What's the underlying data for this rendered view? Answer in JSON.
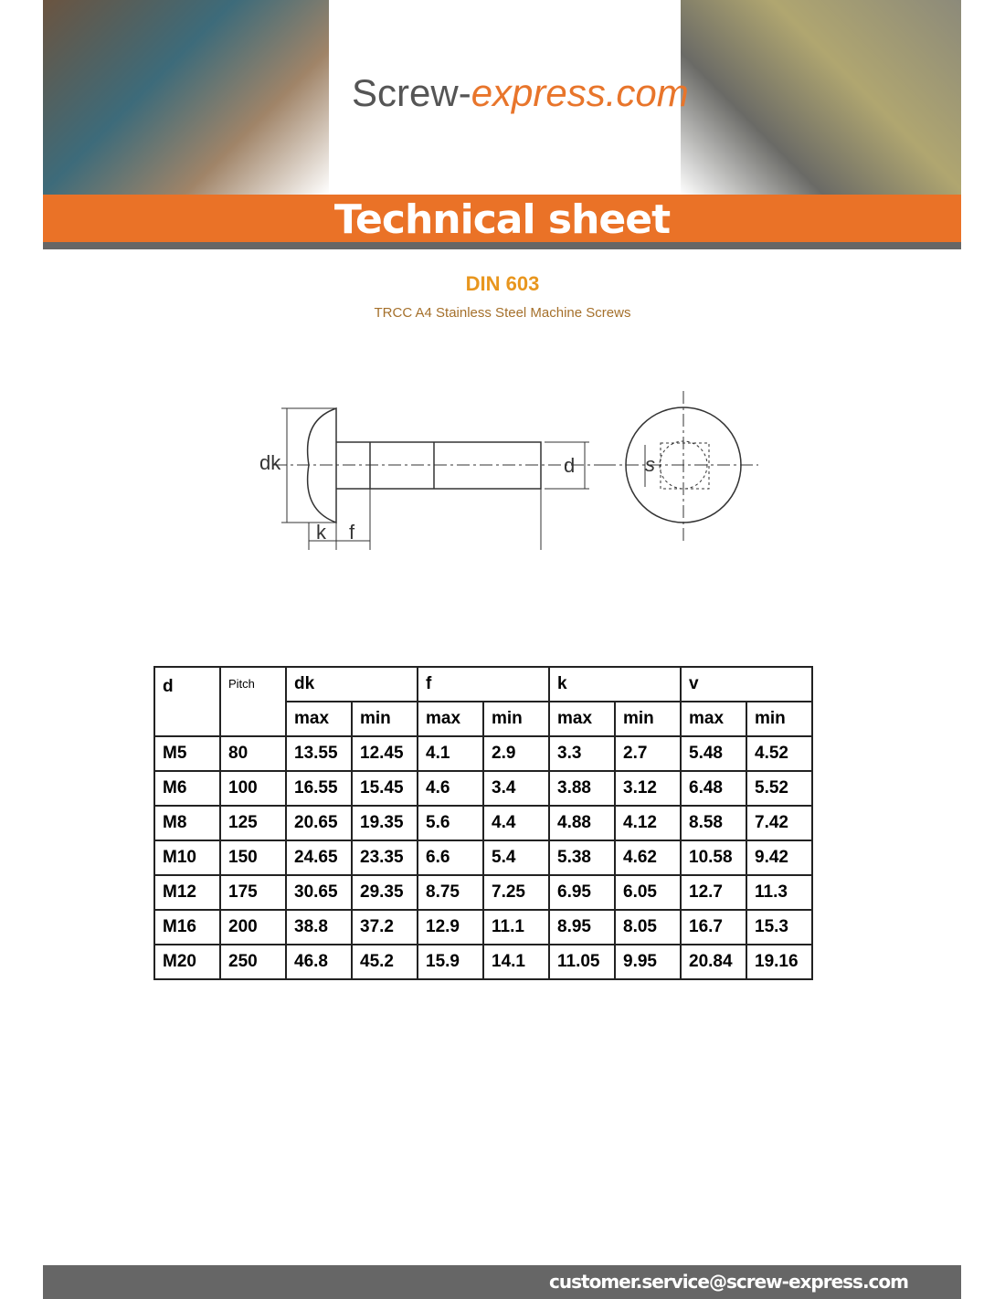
{
  "header": {
    "logo": [
      "Screw-",
      "express.com"
    ],
    "banner": "Technical sheet"
  },
  "title": "DIN 603",
  "subtitle": "TRCC A4 Stainless Steel Machine Screws",
  "diagram": {
    "labels": [
      "dk",
      "k",
      "f",
      "d",
      "s"
    ]
  },
  "table": {
    "header_top": [
      "d",
      "Pitch",
      "dk",
      "f",
      "k",
      "v"
    ],
    "header_sub": [
      "max",
      "min",
      "max",
      "min",
      "max",
      "min",
      "max",
      "min"
    ],
    "rows": [
      [
        "M5",
        "80",
        "13.55",
        "12.45",
        "4.1",
        "2.9",
        "3.3",
        "2.7",
        "5.48",
        "4.52"
      ],
      [
        "M6",
        "100",
        "16.55",
        "15.45",
        "4.6",
        "3.4",
        "3.88",
        "3.12",
        "6.48",
        "5.52"
      ],
      [
        "M8",
        "125",
        "20.65",
        "19.35",
        "5.6",
        "4.4",
        "4.88",
        "4.12",
        "8.58",
        "7.42"
      ],
      [
        "M10",
        "150",
        "24.65",
        "23.35",
        "6.6",
        "5.4",
        "5.38",
        "4.62",
        "10.58",
        "9.42"
      ],
      [
        "M12",
        "175",
        "30.65",
        "29.35",
        "8.75",
        "7.25",
        "6.95",
        "6.05",
        "12.7",
        "11.3"
      ],
      [
        "M16",
        "200",
        "38.8",
        "37.2",
        "12.9",
        "11.1",
        "8.95",
        "8.05",
        "16.7",
        "15.3"
      ],
      [
        "M20",
        "250",
        "46.8",
        "45.2",
        "15.9",
        "14.1",
        "11.05",
        "9.95",
        "20.84",
        "19.16"
      ]
    ]
  },
  "footer": {
    "email": "customer.service@screw-express.com"
  }
}
